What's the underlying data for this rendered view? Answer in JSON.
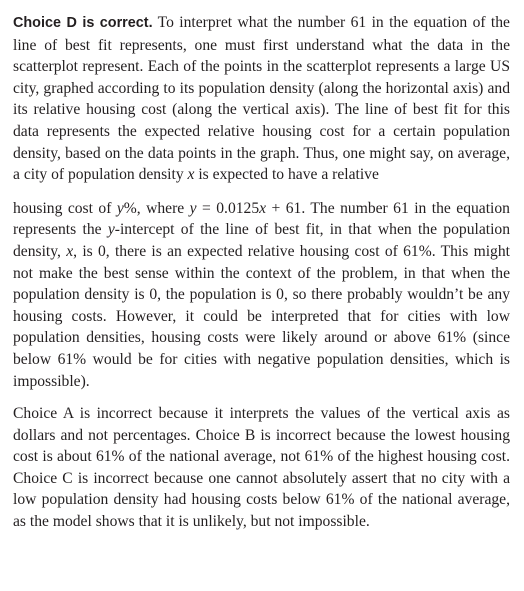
{
  "explanation": {
    "p1": {
      "lead": "Choice D is correct.",
      "t1": " To interpret what the number 61 in the equation of the line of best fit represents, one must first understand what the data in the scatterplot represent. Each of the points in the scatterplot represents a large US city, graphed according to its population density (along the horizontal axis) and its relative housing cost (along the vertical axis). The line of best fit for this data represents the expected relative housing cost for a certain population density, based on the data points in the graph. Thus, one might say, on average, a city of population density ",
      "v1": "x",
      "t2": " is expected to have a relative"
    },
    "p2": {
      "t1": "housing cost of ",
      "v1": "y",
      "t2": "%, where ",
      "v2": "y",
      "t3": " = 0.0125",
      "v3": "x",
      "t4": " + 61. The number 61 in the equation represents the ",
      "v4": "y",
      "t5": "-intercept of the line of best fit, in that when the population density, ",
      "v5": "x",
      "t6": ", is 0, there is an expected relative housing cost of 61%. This might not make the best sense within the context of the problem, in that when the population density is 0, the population is 0, so there probably wouldn’t be any housing costs. However, it could be interpreted that for cities with low population densities, housing costs were likely around or above 61% (since below 61% would be for cities with negative population densities, which is impossible)."
    },
    "p3": {
      "text": "Choice A is incorrect because it interprets the values of the vertical axis as dollars and not percentages. Choice B is incorrect because the lowest hous­ing cost is about 61% of the national average, not 61% of the highest housing cost. Choice C is incorrect because one cannot absolutely assert that no city with a low population density had housing costs below 61% of the national average, as the model shows that it is unlikely, but not impossible."
    }
  }
}
